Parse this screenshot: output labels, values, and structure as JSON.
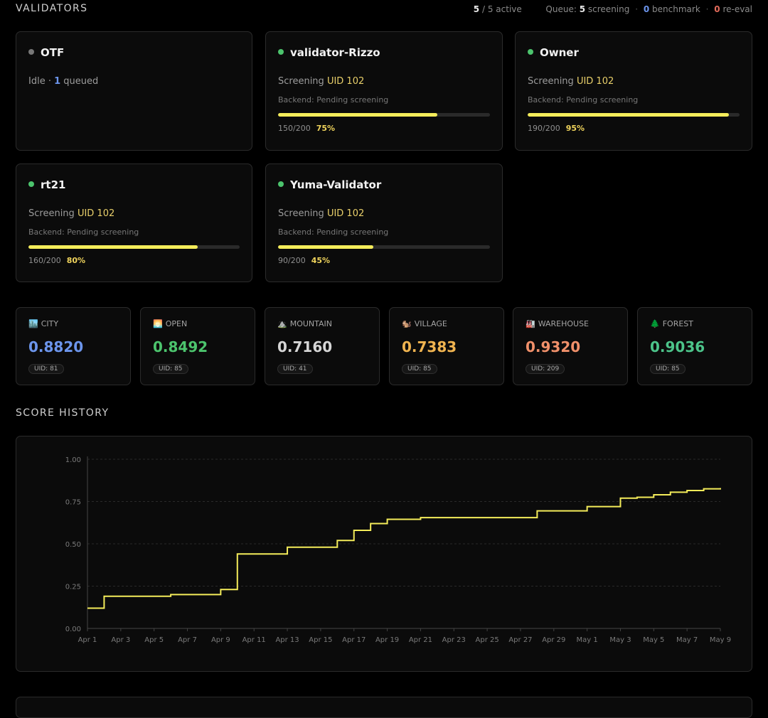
{
  "header": {
    "title": "VALIDATORS",
    "active_count": "5",
    "active_sep": "/ 5 active",
    "queue_label": "Queue:",
    "screening_count": "5",
    "screening_label": "screening",
    "benchmark_count": "0",
    "benchmark_label": "benchmark",
    "reeval_count": "0",
    "reeval_label": "re-eval"
  },
  "validators": [
    {
      "name": "OTF",
      "status": "idle",
      "state_text": "Idle ·",
      "queued_count": "1",
      "queued_label": "queued"
    },
    {
      "name": "validator-Rizzo",
      "status": "active",
      "state_text": "Screening",
      "uid": "UID 102",
      "backend": "Backend: Pending screening",
      "count": "150/200",
      "percent_text": "75%",
      "progress": 0.75
    },
    {
      "name": "Owner",
      "status": "active",
      "state_text": "Screening",
      "uid": "UID 102",
      "backend": "Backend: Pending screening",
      "count": "190/200",
      "percent_text": "95%",
      "progress": 0.95
    },
    {
      "name": "rt21",
      "status": "active",
      "state_text": "Screening",
      "uid": "UID 102",
      "backend": "Backend: Pending screening",
      "count": "160/200",
      "percent_text": "80%",
      "progress": 0.8
    },
    {
      "name": "Yuma-Validator",
      "status": "active",
      "state_text": "Screening",
      "uid": "UID 102",
      "backend": "Backend: Pending screening",
      "count": "90/200",
      "percent_text": "45%",
      "progress": 0.45
    }
  ],
  "environments": [
    {
      "icon": "🏙️",
      "icon_name": "city-icon",
      "label": "CITY",
      "score": "0.8820",
      "uid": "UID: 81",
      "color": "#6c95ec"
    },
    {
      "icon": "🌅",
      "icon_name": "sunrise-icon",
      "label": "OPEN",
      "score": "0.8492",
      "uid": "UID: 85",
      "color": "#4cc46d"
    },
    {
      "icon": "⛰️",
      "icon_name": "mountain-icon",
      "label": "MOUNTAIN",
      "score": "0.7160",
      "uid": "UID: 41",
      "color": "#d6d6d6"
    },
    {
      "icon": "🐿️",
      "icon_name": "squirrel-icon",
      "label": "VILLAGE",
      "score": "0.7383",
      "uid": "UID: 85",
      "color": "#f0b450"
    },
    {
      "icon": "🏭",
      "icon_name": "factory-icon",
      "label": "WAREHOUSE",
      "score": "0.9320",
      "uid": "UID: 209",
      "color": "#f0906a"
    },
    {
      "icon": "🌲",
      "icon_name": "tree-icon",
      "label": "FOREST",
      "score": "0.9036",
      "uid": "UID: 85",
      "color": "#4cc48a"
    }
  ],
  "score_history": {
    "title": "SCORE HISTORY"
  },
  "chart_data": {
    "type": "line",
    "step": true,
    "line_color": "#f4ec5a",
    "ylim": [
      0,
      1
    ],
    "yticks": [
      "0.00",
      "0.25",
      "0.50",
      "0.75",
      "1.00"
    ],
    "x_tick_labels": [
      "Apr 1",
      "Apr 3",
      "Apr 5",
      "Apr 7",
      "Apr 9",
      "Apr 11",
      "Apr 13",
      "Apr 15",
      "Apr 17",
      "Apr 19",
      "Apr 21",
      "Apr 23",
      "Apr 25",
      "Apr 27",
      "Apr 29",
      "May 1",
      "May 3",
      "May 5",
      "May 7",
      "May 9"
    ],
    "grid": "horizontal dashed",
    "series": [
      {
        "points": [
          [
            "2025-04-01",
            0.12
          ],
          [
            "2025-04-02",
            0.19
          ],
          [
            "2025-04-06",
            0.2
          ],
          [
            "2025-04-09",
            0.23
          ],
          [
            "2025-04-10",
            0.44
          ],
          [
            "2025-04-13",
            0.48
          ],
          [
            "2025-04-16",
            0.52
          ],
          [
            "2025-04-17",
            0.58
          ],
          [
            "2025-04-18",
            0.62
          ],
          [
            "2025-04-19",
            0.645
          ],
          [
            "2025-04-21",
            0.655
          ],
          [
            "2025-04-28",
            0.695
          ],
          [
            "2025-05-01",
            0.72
          ],
          [
            "2025-05-03",
            0.77
          ],
          [
            "2025-05-04",
            0.775
          ],
          [
            "2025-05-05",
            0.79
          ],
          [
            "2025-05-06",
            0.805
          ],
          [
            "2025-05-07",
            0.815
          ],
          [
            "2025-05-08",
            0.825
          ],
          [
            "2025-05-09",
            0.83
          ]
        ]
      }
    ]
  }
}
